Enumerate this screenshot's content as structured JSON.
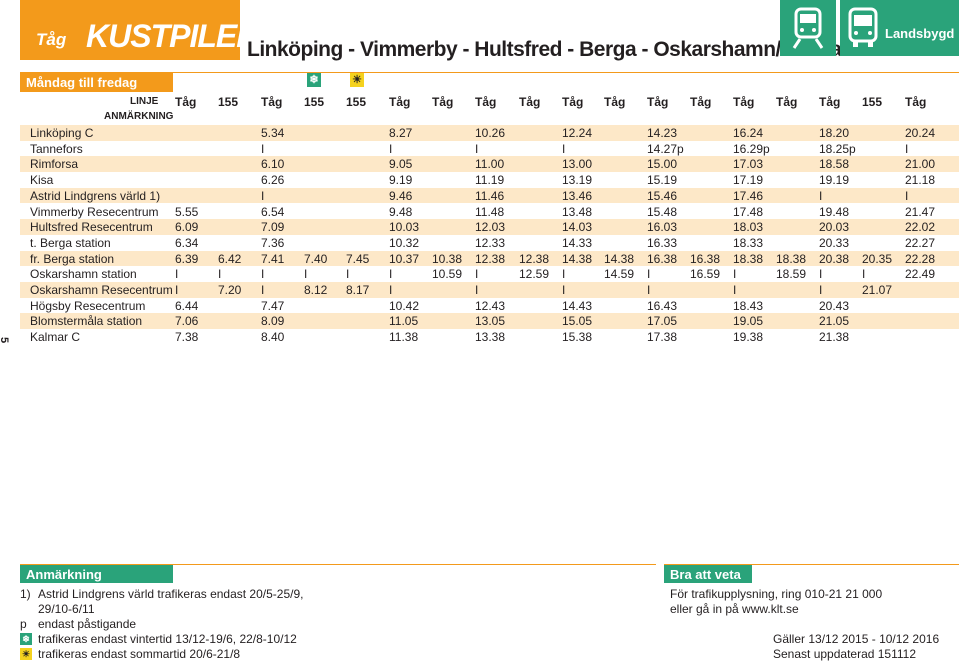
{
  "brand": {
    "mode": "Tåg",
    "name": "KUSTPILEN",
    "badge": "Landsbygd"
  },
  "route_title": "Linköping - Vimmerby - Hultsfred  - Berga - Oskarshamn/Kalmar",
  "day_label": "Måndag till fredag",
  "linje_label": "LINJE",
  "anmarkning_label": "ANMÄRKNING",
  "symbols": {
    "winter": "❄",
    "summer": "☀"
  },
  "colors": {
    "orange": "#f39a1b",
    "green": "#2aa37a",
    "yellow": "#f5d21e",
    "row_shade": "#fde8c8"
  },
  "icons": [
    "train-icon",
    "bus-icon",
    "snowflake-icon",
    "sun-icon"
  ],
  "page_number": "5",
  "columns": [
    "Tåg",
    "155",
    "Tåg",
    "155",
    "155",
    "Tåg",
    "Tåg",
    "Tåg",
    "Tåg",
    "Tåg",
    "Tåg",
    "Tåg",
    "Tåg",
    "Tåg",
    "Tåg",
    "Tåg",
    "155",
    "Tåg"
  ],
  "stops": [
    {
      "name": "Linköping C",
      "times": [
        "",
        "",
        "5.34",
        "",
        "",
        "8.27",
        "",
        "10.26",
        "",
        "12.24",
        "",
        "14.23",
        "",
        "16.24",
        "",
        "18.20",
        "",
        "20.24"
      ]
    },
    {
      "name": "Tannefors",
      "times": [
        "",
        "",
        "I",
        "",
        "",
        "I",
        "",
        "I",
        "",
        "I",
        "",
        "14.27p",
        "",
        "16.29p",
        "",
        "18.25p",
        "",
        "I"
      ]
    },
    {
      "name": "Rimforsa",
      "times": [
        "",
        "",
        "6.10",
        "",
        "",
        "9.05",
        "",
        "11.00",
        "",
        "13.00",
        "",
        "15.00",
        "",
        "17.03",
        "",
        "18.58",
        "",
        "21.00"
      ]
    },
    {
      "name": "Kisa",
      "times": [
        "",
        "",
        "6.26",
        "",
        "",
        "9.19",
        "",
        "11.19",
        "",
        "13.19",
        "",
        "15.19",
        "",
        "17.19",
        "",
        "19.19",
        "",
        "21.18"
      ]
    },
    {
      "name": "Astrid Lindgrens värld 1)",
      "times": [
        "",
        "",
        "I",
        "",
        "",
        "9.46",
        "",
        "11.46",
        "",
        "13.46",
        "",
        "15.46",
        "",
        "17.46",
        "",
        "I",
        "",
        "I"
      ]
    },
    {
      "name": "Vimmerby Resecentrum",
      "times": [
        "5.55",
        "",
        "6.54",
        "",
        "",
        "9.48",
        "",
        "11.48",
        "",
        "13.48",
        "",
        "15.48",
        "",
        "17.48",
        "",
        "19.48",
        "",
        "21.47"
      ]
    },
    {
      "name": "Hultsfred Resecentrum",
      "times": [
        "6.09",
        "",
        "7.09",
        "",
        "",
        "10.03",
        "",
        "12.03",
        "",
        "14.03",
        "",
        "16.03",
        "",
        "18.03",
        "",
        "20.03",
        "",
        "22.02"
      ]
    },
    {
      "name": "t. Berga station",
      "times": [
        "6.34",
        "",
        "7.36",
        "",
        "",
        "10.32",
        "",
        "12.33",
        "",
        "14.33",
        "",
        "16.33",
        "",
        "18.33",
        "",
        "20.33",
        "",
        "22.27"
      ]
    },
    {
      "name": "fr. Berga station",
      "times": [
        "6.39",
        "6.42",
        "7.41",
        "7.40",
        "7.45",
        "10.37",
        "10.38",
        "12.38",
        "12.38",
        "14.38",
        "14.38",
        "16.38",
        "16.38",
        "18.38",
        "18.38",
        "20.38",
        "20.35",
        "22.28"
      ]
    },
    {
      "name": "Oskarshamn station",
      "times": [
        "I",
        "I",
        "I",
        "I",
        "I",
        "I",
        "10.59",
        "I",
        "12.59",
        "I",
        "14.59",
        "I",
        "16.59",
        "I",
        "18.59",
        "I",
        "I",
        "22.49"
      ]
    },
    {
      "name": "Oskarshamn Resecentrum",
      "times": [
        "I",
        "7.20",
        "I",
        "8.12",
        "8.17",
        "I",
        "",
        "I",
        "",
        "I",
        "",
        "I",
        "",
        "I",
        "",
        "I",
        "21.07",
        ""
      ]
    },
    {
      "name": "Högsby Resecentrum",
      "times": [
        "6.44",
        "",
        "7.47",
        "",
        "",
        "10.42",
        "",
        "12.43",
        "",
        "14.43",
        "",
        "16.43",
        "",
        "18.43",
        "",
        "20.43",
        "",
        ""
      ]
    },
    {
      "name": "Blomstermåla station",
      "times": [
        "7.06",
        "",
        "8.09",
        "",
        "",
        "11.05",
        "",
        "13.05",
        "",
        "15.05",
        "",
        "17.05",
        "",
        "19.05",
        "",
        "21.05",
        "",
        ""
      ]
    },
    {
      "name": "Kalmar C",
      "times": [
        "7.38",
        "",
        "8.40",
        "",
        "",
        "11.38",
        "",
        "13.38",
        "",
        "15.38",
        "",
        "17.38",
        "",
        "19.38",
        "",
        "21.38",
        "",
        ""
      ]
    }
  ],
  "notes": {
    "title": "Anmärkning",
    "n1_mark": "1)",
    "n1_line1": "Astrid Lindgrens värld trafikeras endast 20/5-25/9,",
    "n1_line2": "29/10-6/11",
    "p_mark": "p",
    "p_text": "endast påstigande",
    "winter_text": "trafikeras endast vintertid 13/12-19/6, 22/8-10/12",
    "summer_text": "trafikeras endast sommartid 20/6-21/8"
  },
  "info": {
    "title": "Bra att veta",
    "line1": "För trafikupplysning, ring 010-21 21 000",
    "line2": "eller gå in på www.klt.se",
    "valid": "Gäller 13/12 2015 - 10/12 2016",
    "updated": "Senast uppdaterad 151112"
  }
}
